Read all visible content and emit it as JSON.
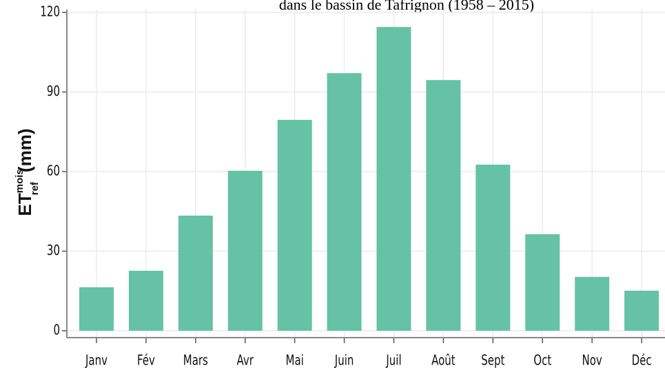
{
  "chart_data": {
    "type": "bar",
    "title": "dans le bassin de Tafrignon (1958 – 2015)",
    "y_label": {
      "base": "ET",
      "sup": "mois",
      "sub": "ref",
      "unit": "(mm)"
    },
    "categories": [
      "Janv",
      "Fév",
      "Mars",
      "Avr",
      "Mai",
      "Juin",
      "Juil",
      "Août",
      "Sept",
      "Oct",
      "Nov",
      "Déc"
    ],
    "values": [
      16.4,
      22.6,
      43.4,
      60.3,
      79.5,
      97.1,
      114.5,
      94.5,
      62.6,
      36.4,
      20.3,
      15.1
    ],
    "color": "#66c2a5",
    "ylim": [
      0,
      120
    ],
    "yticks": [
      0,
      30,
      60,
      90,
      120
    ],
    "grid": true
  }
}
